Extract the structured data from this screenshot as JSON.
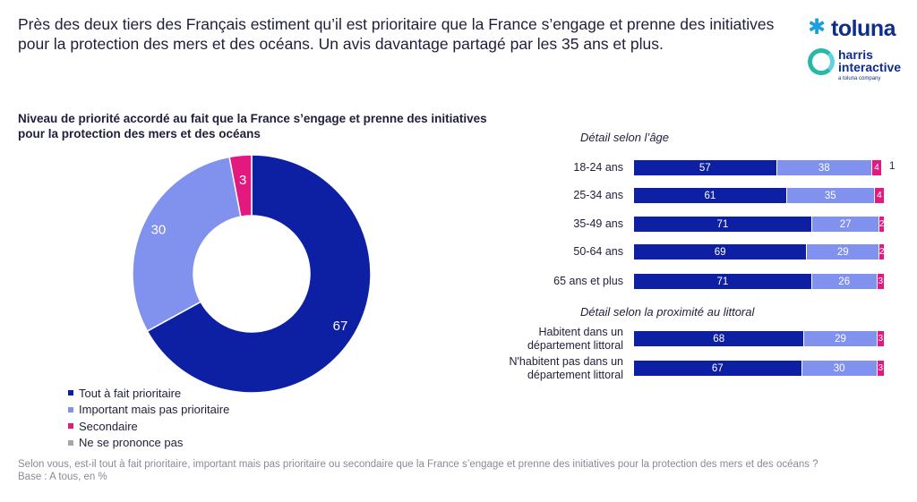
{
  "headline": "Près des deux tiers des Français estiment qu’il est prioritaire que la France s’engage et prenne des initiatives pour la protection des mers et des océans. Un avis davantage partagé par les 35 ans et plus.",
  "logos": {
    "toluna": "toluna",
    "harris_line1": "harris",
    "harris_line2": "interactive",
    "harris_tagline": "a toluna company"
  },
  "chart_title": "Niveau de priorité accordé au fait que la France s’engage et prenne des initiatives pour la protection des mers et des océans",
  "colors": {
    "tout_a_fait": "#0d1fa3",
    "important": "#8091ee",
    "secondaire": "#e3197f",
    "nsp": "#a6a6a6"
  },
  "chart_data": [
    {
      "type": "pie",
      "title": "Niveau de priorité accordé au fait que la France s’engage et prenne des initiatives pour la protection des mers et des océans",
      "categories": [
        "Tout à fait prioritaire",
        "Important mais pas prioritaire",
        "Secondaire",
        "Ne se prononce pas"
      ],
      "values": [
        67,
        30,
        3,
        0
      ],
      "labels": [
        "67",
        "30",
        "3",
        ""
      ],
      "legend": "bottom-left",
      "donut": true
    },
    {
      "type": "bar",
      "orientation": "horizontal",
      "stacked": true,
      "title": "Détail selon l’âge",
      "categories": [
        "18-24 ans",
        "25-34 ans",
        "35-49 ans",
        "50-64 ans",
        "65 ans et plus"
      ],
      "series": [
        {
          "name": "Tout à fait prioritaire",
          "values": [
            57,
            61,
            71,
            69,
            71
          ]
        },
        {
          "name": "Important mais pas prioritaire",
          "values": [
            38,
            35,
            27,
            29,
            26
          ]
        },
        {
          "name": "Secondaire",
          "values": [
            4,
            4,
            2,
            2,
            3
          ]
        },
        {
          "name": "Ne se prononce pas",
          "values": [
            1,
            0,
            0,
            0,
            0
          ]
        }
      ],
      "labels": [
        [
          "57",
          "38",
          "4",
          "1"
        ],
        [
          "61",
          "35",
          "4",
          ""
        ],
        [
          "71",
          "27",
          "2",
          ""
        ],
        [
          "69",
          "29",
          "2",
          ""
        ],
        [
          "71",
          "26",
          "3",
          ""
        ]
      ],
      "xlim": [
        0,
        100
      ]
    },
    {
      "type": "bar",
      "orientation": "horizontal",
      "stacked": true,
      "title": "Détail selon la proximité au littoral",
      "categories": [
        "Habitent dans un département littoral",
        "N'habitent pas dans un département littoral"
      ],
      "category_lines": [
        [
          "Habitent dans un",
          "département littoral"
        ],
        [
          "N'habitent pas dans un",
          "département littoral"
        ]
      ],
      "series": [
        {
          "name": "Tout à fait prioritaire",
          "values": [
            68,
            67
          ]
        },
        {
          "name": "Important mais pas prioritaire",
          "values": [
            29,
            30
          ]
        },
        {
          "name": "Secondaire",
          "values": [
            3,
            3
          ]
        },
        {
          "name": "Ne se prononce pas",
          "values": [
            0,
            0
          ]
        }
      ],
      "labels": [
        [
          "68",
          "29",
          "3",
          ""
        ],
        [
          "67",
          "30",
          "3",
          ""
        ]
      ],
      "xlim": [
        0,
        100
      ]
    }
  ],
  "legend_items": [
    "Tout à fait prioritaire",
    "Important mais pas prioritaire",
    "Secondaire",
    "Ne se prononce pas"
  ],
  "footer": {
    "question": "Selon vous, est-il tout à fait prioritaire, important mais pas prioritaire ou secondaire que la France s’engage et prenne des initiatives pour la protection des mers et des océans ?",
    "base": "Base : A tous, en %"
  }
}
